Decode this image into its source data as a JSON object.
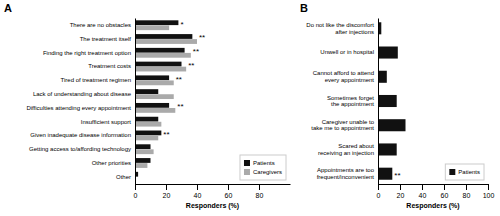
{
  "chart_data": [
    {
      "type": "bar",
      "title": "A",
      "orientation": "horizontal",
      "categories": [
        "There are no obstacles",
        "The treatment itself",
        "Finding the right treatment option",
        "Treatment costs",
        "Tired of treatment regimen",
        "Lack of understanding about disease",
        "Difficulties attending every appointment",
        "Insufficient support",
        "Given inadequate disease information",
        "Getting access to/affording technology",
        "Other priorities",
        "Other"
      ],
      "series": [
        {
          "name": "Patients",
          "color": "#111111",
          "values": [
            28,
            37,
            32,
            30,
            22,
            15,
            22,
            15,
            17,
            10,
            10,
            2
          ]
        },
        {
          "name": "Caregivers",
          "color": "#aaaaaa",
          "values": [
            22,
            40,
            36,
            33,
            25,
            25,
            26,
            17,
            15,
            12,
            8,
            0
          ]
        }
      ],
      "annotations": [
        "*",
        "**",
        "**",
        "**",
        "**",
        null,
        "**",
        null,
        "**",
        null,
        null,
        null
      ],
      "xlabel": "Responders (%)",
      "xlim": [
        0,
        100
      ],
      "xticks": [
        0,
        20,
        40,
        60,
        80
      ],
      "legend": "lower right"
    },
    {
      "type": "bar",
      "title": "B",
      "orientation": "horizontal",
      "categories": [
        "Do not like the discomfort\nafter injections",
        "Unwell or in hospital",
        "Cannot afford to attend\nevery appointment",
        "Sometimes forget\nthe appointment",
        "Caregiver unable to\ntake me to appointment",
        "Scared about\nreceiving an injection",
        "Appointments are too\nfrequent/inconvenient"
      ],
      "series": [
        {
          "name": "Patients",
          "color": "#111111",
          "values": [
            3,
            18,
            8,
            17,
            25,
            17,
            13
          ]
        }
      ],
      "annotations": [
        null,
        null,
        null,
        null,
        null,
        null,
        "**"
      ],
      "xlabel": "Responders (%)",
      "xlim": [
        0,
        100
      ],
      "xticks": [
        0,
        20,
        40,
        60,
        80,
        100
      ],
      "legend": "lower right"
    }
  ]
}
